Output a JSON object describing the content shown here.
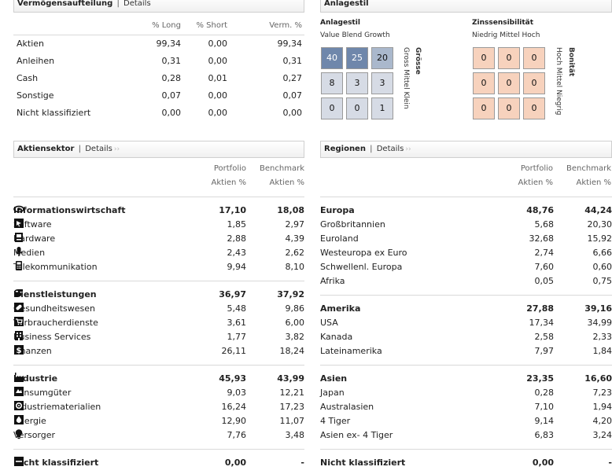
{
  "asset_allocation": {
    "title": "Vermögensaufteilung",
    "details": "Details",
    "columns": [
      "% Long",
      "% Short",
      "Verm. %"
    ],
    "rows": [
      {
        "label": "Aktien",
        "long": "99,34",
        "short": "0,00",
        "net": "99,34"
      },
      {
        "label": "Anleihen",
        "long": "0,31",
        "short": "0,00",
        "net": "0,31"
      },
      {
        "label": "Cash",
        "long": "0,28",
        "short": "0,01",
        "net": "0,27"
      },
      {
        "label": "Sonstige",
        "long": "0,07",
        "short": "0,00",
        "net": "0,07"
      },
      {
        "label": "Nicht klassifiziert",
        "long": "0,00",
        "short": "0,00",
        "net": "0,00"
      }
    ]
  },
  "style_box": {
    "title": "Anlagestil",
    "equity": {
      "title": "Anlagestil",
      "col_labels": "Value Blend Growth",
      "row_title": "Grösse",
      "row_labels": "Gross Mittel Klein",
      "cells": [
        "40",
        "25",
        "20",
        "8",
        "3",
        "3",
        "0",
        "0",
        "1"
      ]
    },
    "fixed": {
      "title": "Zinssensibilität",
      "col_labels": "Niedrig Mittel Hoch",
      "row_title": "Bonität",
      "row_labels": "Hoch Mittel Niegrig",
      "cells": [
        "0",
        "0",
        "0",
        "0",
        "0",
        "0",
        "0",
        "0",
        "0"
      ]
    }
  },
  "sectors": {
    "title": "Aktiensektor",
    "details": "Details",
    "col1": [
      "Portfolio",
      "Aktien %"
    ],
    "col2": [
      "Benchmark",
      "Aktien %"
    ],
    "groups": [
      {
        "label": "Informationswirtschaft",
        "portfolio": "17,10",
        "benchmark": "18,08",
        "icon": "eye-icon",
        "items": [
          {
            "label": "Software",
            "portfolio": "1,85",
            "benchmark": "2,97",
            "icon": "software-icon"
          },
          {
            "label": "Hardware",
            "portfolio": "2,88",
            "benchmark": "4,39",
            "icon": "hardware-icon"
          },
          {
            "label": "Medien",
            "portfolio": "2,43",
            "benchmark": "2,62",
            "icon": "microphone-icon"
          },
          {
            "label": "Telekommunikation",
            "portfolio": "9,94",
            "benchmark": "8,10",
            "icon": "phone-icon"
          }
        ]
      },
      {
        "label": "Dienstleistungen",
        "portfolio": "36,97",
        "benchmark": "37,92",
        "icon": "hand-icon",
        "items": [
          {
            "label": "Gesundheitswesen",
            "portfolio": "5,48",
            "benchmark": "9,86",
            "icon": "pill-icon"
          },
          {
            "label": "Verbraucherdienste",
            "portfolio": "3,61",
            "benchmark": "6,00",
            "icon": "cart-icon"
          },
          {
            "label": "Business Services",
            "portfolio": "1,77",
            "benchmark": "3,82",
            "icon": "building-icon"
          },
          {
            "label": "Finanzen",
            "portfolio": "26,11",
            "benchmark": "18,24",
            "icon": "dollar-icon"
          }
        ]
      },
      {
        "label": "Industrie",
        "portfolio": "45,93",
        "benchmark": "43,99",
        "icon": "factory-icon",
        "items": [
          {
            "label": "Konsumgüter",
            "portfolio": "9,03",
            "benchmark": "12,21",
            "icon": "consumer-icon"
          },
          {
            "label": "Industriematerialien",
            "portfolio": "16,24",
            "benchmark": "17,23",
            "icon": "gear-icon"
          },
          {
            "label": "Energie",
            "portfolio": "12,90",
            "benchmark": "11,07",
            "icon": "drop-icon"
          },
          {
            "label": "Versorger",
            "portfolio": "7,76",
            "benchmark": "3,48",
            "icon": "bulb-icon"
          }
        ]
      }
    ],
    "unclassified": {
      "label": "Nicht klassifiziert",
      "portfolio": "0,00",
      "benchmark": "-",
      "icon": "minus-icon"
    }
  },
  "regions": {
    "title": "Regionen",
    "details": "Details",
    "col1": [
      "Portfolio",
      "Aktien %"
    ],
    "col2": [
      "Benchmark",
      "Aktien %"
    ],
    "groups": [
      {
        "label": "Europa",
        "portfolio": "48,76",
        "benchmark": "44,24",
        "items": [
          {
            "label": "Großbritannien",
            "portfolio": "5,68",
            "benchmark": "20,30"
          },
          {
            "label": "Euroland",
            "portfolio": "32,68",
            "benchmark": "15,92"
          },
          {
            "label": "Westeuropa ex Euro",
            "portfolio": "2,74",
            "benchmark": "6,66"
          },
          {
            "label": "Schwellenl. Europa",
            "portfolio": "7,60",
            "benchmark": "0,60"
          },
          {
            "label": "Afrika",
            "portfolio": "0,05",
            "benchmark": "0,75"
          }
        ]
      },
      {
        "label": "Amerika",
        "portfolio": "27,88",
        "benchmark": "39,16",
        "items": [
          {
            "label": "USA",
            "portfolio": "17,34",
            "benchmark": "34,99"
          },
          {
            "label": "Kanada",
            "portfolio": "2,58",
            "benchmark": "2,33"
          },
          {
            "label": "Lateinamerika",
            "portfolio": "7,97",
            "benchmark": "1,84"
          }
        ]
      },
      {
        "label": "Asien",
        "portfolio": "23,35",
        "benchmark": "16,60",
        "items": [
          {
            "label": "Japan",
            "portfolio": "0,28",
            "benchmark": "7,23"
          },
          {
            "label": "Australasien",
            "portfolio": "7,10",
            "benchmark": "1,94"
          },
          {
            "label": "4 Tiger",
            "portfolio": "9,14",
            "benchmark": "4,20"
          },
          {
            "label": "Asien ex- 4 Tiger",
            "portfolio": "6,83",
            "benchmark": "3,24"
          }
        ]
      }
    ],
    "unclassified": {
      "label": "Nicht klassifiziert",
      "portfolio": "0,00",
      "benchmark": "-"
    }
  }
}
